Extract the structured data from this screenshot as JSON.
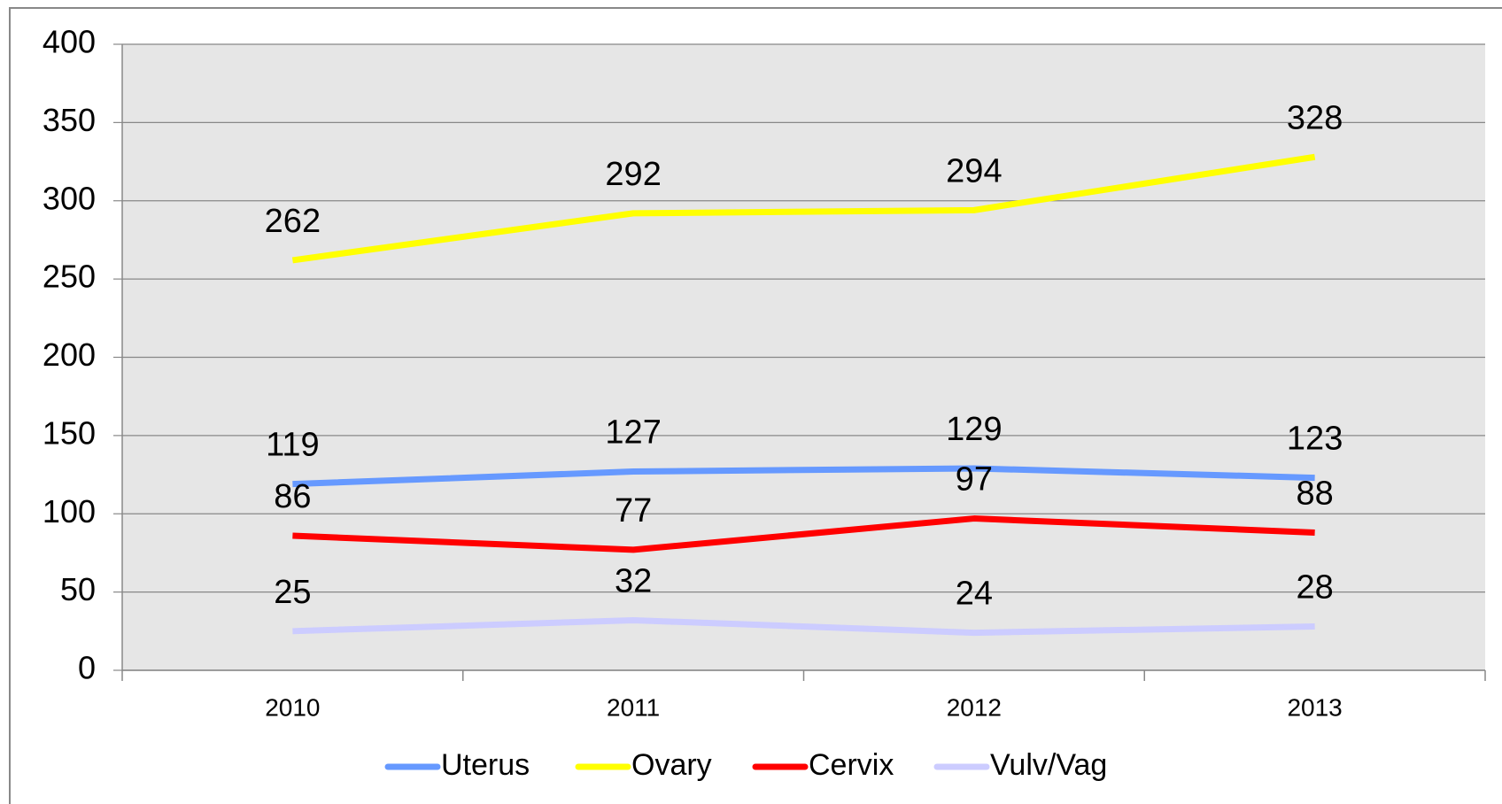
{
  "chart_data": {
    "type": "line",
    "categories": [
      "2010",
      "2011",
      "2012",
      "2013"
    ],
    "series": [
      {
        "name": "Uterus",
        "color": "#6699ff",
        "values": [
          119,
          127,
          129,
          123
        ]
      },
      {
        "name": "Ovary",
        "color": "#ffff00",
        "values": [
          262,
          292,
          294,
          328
        ]
      },
      {
        "name": "Cervix",
        "color": "#ff0000",
        "values": [
          86,
          77,
          97,
          88
        ]
      },
      {
        "name": "Vulv/Vag",
        "color": "#ccccff",
        "values": [
          25,
          32,
          24,
          28
        ]
      }
    ],
    "ylim": [
      0,
      400
    ],
    "yticks": [
      0,
      50,
      100,
      150,
      200,
      250,
      300,
      350,
      400
    ],
    "grid": true,
    "legend": "bottom"
  }
}
